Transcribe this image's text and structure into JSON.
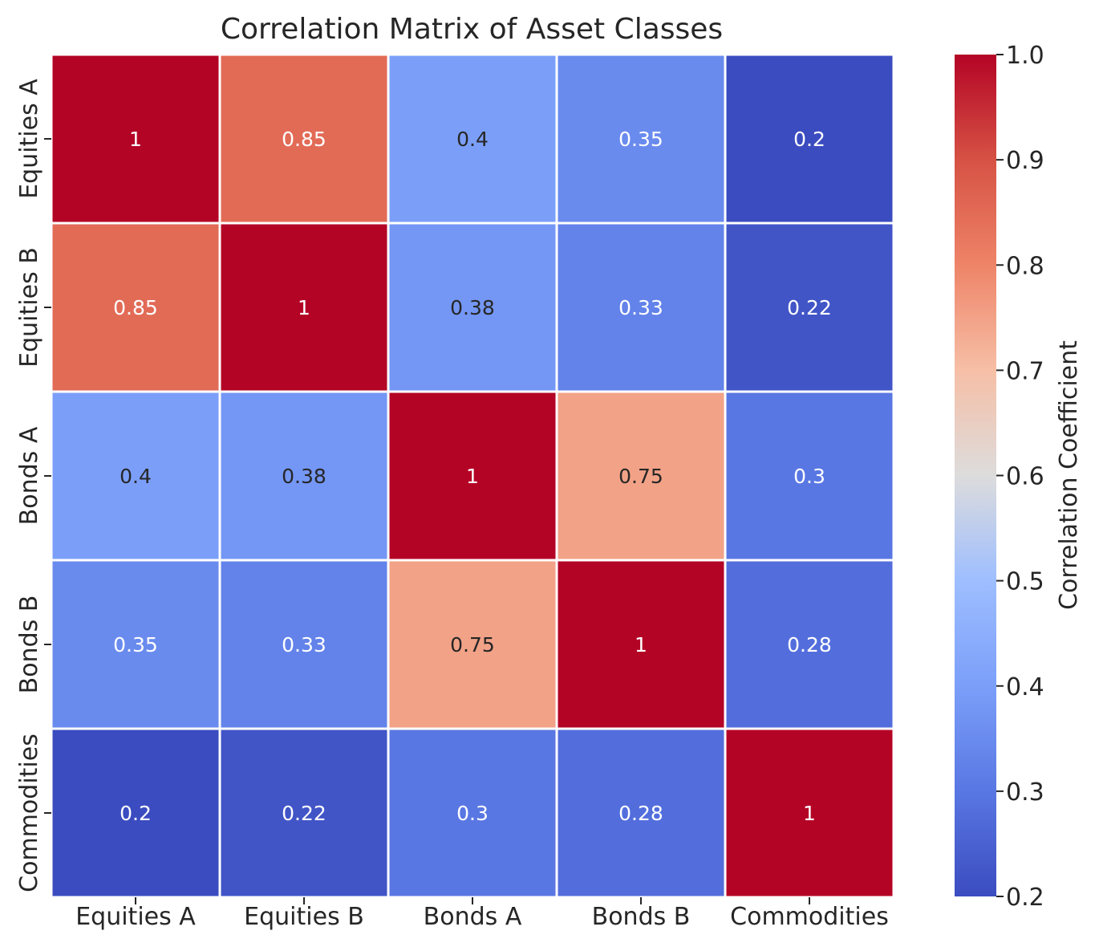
{
  "chart_data": {
    "type": "heatmap",
    "title": "Correlation Matrix of Asset Classes",
    "xlabel": "",
    "ylabel": "",
    "x_labels": [
      "Equities A",
      "Equities B",
      "Bonds A",
      "Bonds B",
      "Commodities"
    ],
    "y_labels": [
      "Equities A",
      "Equities B",
      "Bonds A",
      "Bonds B",
      "Commodities"
    ],
    "values": [
      [
        1,
        0.85,
        0.4,
        0.35,
        0.2
      ],
      [
        0.85,
        1,
        0.38,
        0.33,
        0.22
      ],
      [
        0.4,
        0.38,
        1,
        0.75,
        0.3
      ],
      [
        0.35,
        0.33,
        0.75,
        1,
        0.28
      ],
      [
        0.2,
        0.22,
        0.3,
        0.28,
        1
      ]
    ],
    "colormap": "coolwarm",
    "vmin": 0.2,
    "vmax": 1.0,
    "annotations_shown": true,
    "colorbar": {
      "label": "Correlation Coefficient",
      "ticks": [
        "0.2",
        "0.3",
        "0.4",
        "0.5",
        "0.6",
        "0.7",
        "0.8",
        "0.9",
        "1.0"
      ]
    },
    "cell_border_color": "#ffffff",
    "legend": "colorbar-right"
  }
}
